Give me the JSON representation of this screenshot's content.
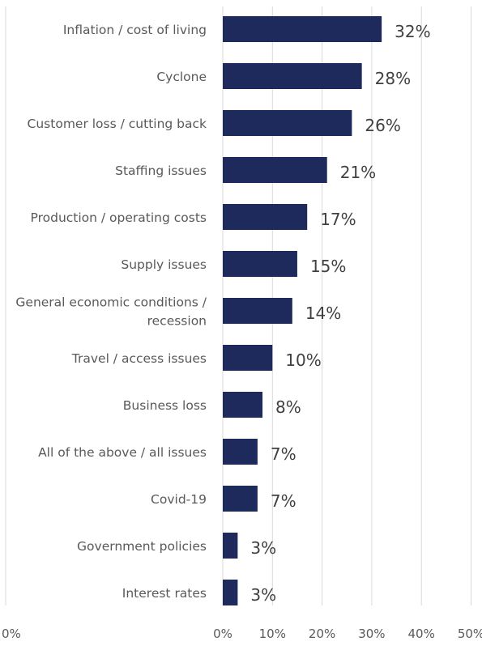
{
  "chart_data": {
    "type": "bar",
    "orientation": "horizontal",
    "categories": [
      "Inflation / cost of living",
      "Cyclone",
      "Customer loss / cutting back",
      "Staffing issues",
      "Production / operating costs",
      "Supply issues",
      "General economic conditions / recession",
      "Travel / access issues",
      "Business loss",
      "All of the above / all issues",
      "Covid-19",
      "Government policies",
      "Interest rates"
    ],
    "category_lines": [
      [
        "Inflation / cost of living"
      ],
      [
        "Cyclone"
      ],
      [
        "Customer loss / cutting back"
      ],
      [
        "Staffing issues"
      ],
      [
        "Production / operating costs"
      ],
      [
        "Supply issues"
      ],
      [
        "General economic conditions /",
        "recession"
      ],
      [
        "Travel / access issues"
      ],
      [
        "Business loss"
      ],
      [
        "All of the above / all issues"
      ],
      [
        "Covid-19"
      ],
      [
        "Government policies"
      ],
      [
        "Interest rates"
      ]
    ],
    "values": [
      32,
      28,
      26,
      21,
      17,
      15,
      14,
      10,
      8,
      7,
      7,
      3,
      3
    ],
    "value_labels": [
      "32%",
      "28%",
      "26%",
      "21%",
      "17%",
      "15%",
      "14%",
      "10%",
      "8%",
      "7%",
      "7%",
      "3%",
      "3%"
    ],
    "x_ticks": [
      0,
      10,
      20,
      30,
      40,
      50
    ],
    "x_tick_labels": [
      "0%",
      "10%",
      "20%",
      "30%",
      "40%",
      "50%"
    ],
    "left_axis_tick_label": "0%",
    "xlim": [
      0,
      50
    ],
    "grid": true,
    "title": "",
    "xlabel": "",
    "ylabel": "",
    "colors": {
      "bar": "#1f2a5c",
      "gridline": "#d9d9d9",
      "category_text": "#595959",
      "value_text": "#404040",
      "tick_text": "#595959"
    }
  }
}
